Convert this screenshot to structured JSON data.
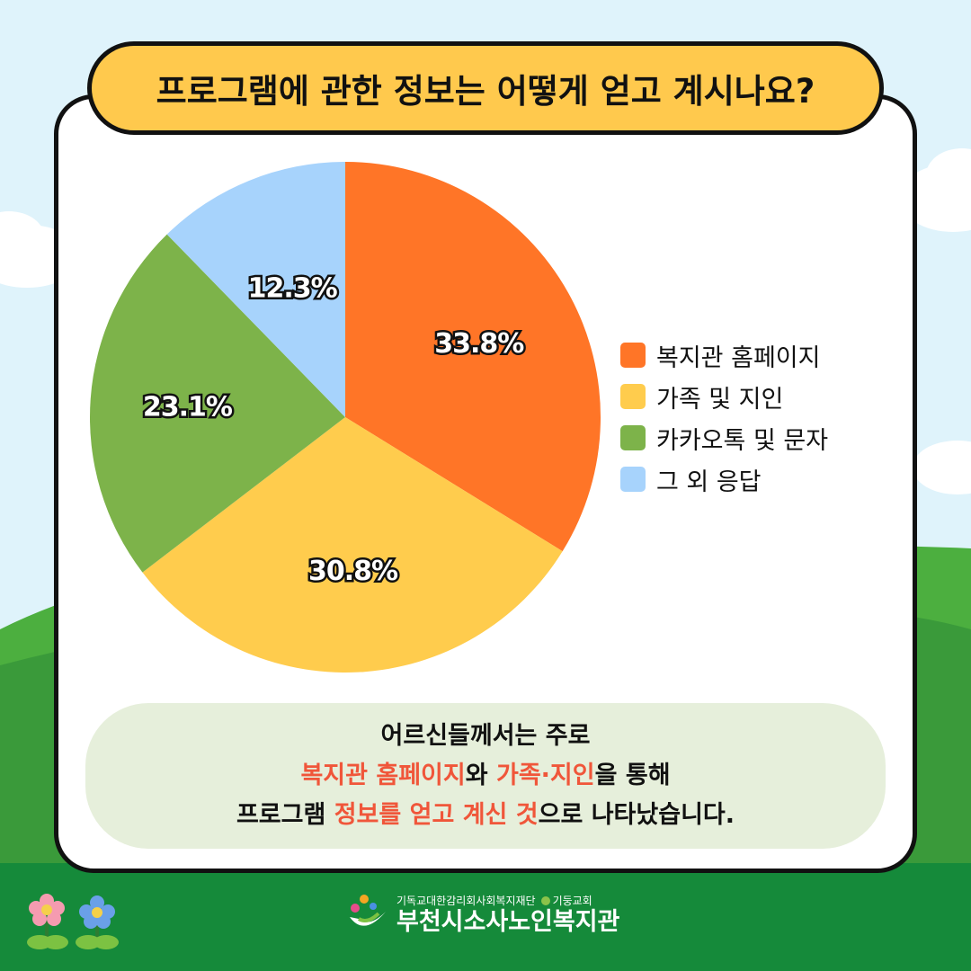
{
  "title": "프로그램에 관한 정보는 어떻게 얻고 계시나요?",
  "chart_data": {
    "type": "pie",
    "categories": [
      "복지관 홈페이지",
      "가족 및 지인",
      "카카오톡 및 문자",
      "그 외 응답"
    ],
    "values": [
      33.8,
      30.8,
      23.1,
      12.3
    ],
    "labels": [
      "33.8%",
      "30.8%",
      "23.1%",
      "12.3%"
    ],
    "colors": [
      "#ff7527",
      "#ffcc4d",
      "#7db34a",
      "#a7d3fc"
    ],
    "legend_position": "right",
    "start_angle": "12 o'clock, clockwise"
  },
  "summary": {
    "line1": "어르신들께서는 주로",
    "line2_hl1": "복지관 홈페이지",
    "line2_mid": "와 ",
    "line2_hl2": "가족·지인",
    "line2_end": "을 통해",
    "line3_start": "프로그램 ",
    "line3_hl": "정보를 얻고 계신 것",
    "line3_end": "으로 나타났습니다."
  },
  "footer": {
    "org_line1": "기독교대한감리회사회복지재단",
    "org_line1_b": "기둥교회",
    "org_name": "부천시소사노인복지관"
  },
  "colors": {
    "sky": "#dff3fb",
    "grass": "#3a9a3a",
    "title_bg": "#ffc94d",
    "summary_bg": "#e6efdb",
    "highlight": "#f0563a"
  }
}
